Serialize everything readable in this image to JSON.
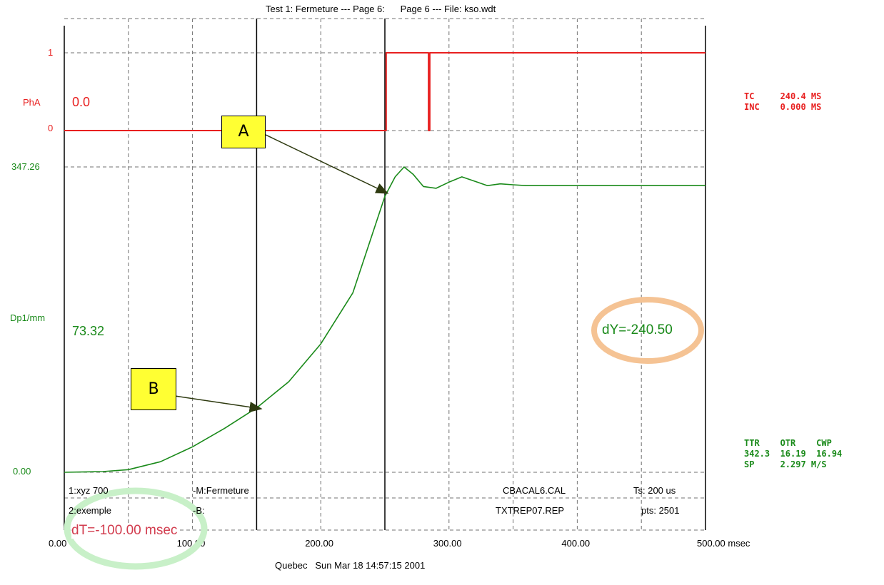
{
  "header": {
    "title": "Test 1: Fermeture --- Page 6:      Page 6 --- File: kso.wdt"
  },
  "left_labels": {
    "pha_one": "1",
    "pha_name": "PhA",
    "pha_zero": "0",
    "dp_max": "347.26",
    "dp_name": "Dp1/mm",
    "dp_zero": "0.00"
  },
  "readouts": {
    "pha_value": "0.0",
    "dp_value": "73.32",
    "dy": "dY=-240.50",
    "dt": "dT=-100.00 msec"
  },
  "right_panel": {
    "tc_line": "TC     240.4 MS",
    "inc_line": "INC    0.000 MS",
    "ttr_header": "TTR    OTR    CWP",
    "ttr_values": "342.3  16.19  16.94",
    "sp_line": "SP     2.297 M/S"
  },
  "info_box": {
    "row1_col1": "1:xyz 700",
    "row1_col2": "-M:Fermeture",
    "row1_col3": "CBACAL6.CAL",
    "row1_col4": "Ts: 200 us",
    "row2_col1": "2:exemple",
    "row2_col2": "-B:",
    "row2_col3": "TXTREP07.REP",
    "row2_col4": "pts: 2501"
  },
  "callouts": {
    "a": "A",
    "b": "B"
  },
  "footer": "Quebec   Sun Mar 18 14:57:15 2001",
  "colors": {
    "pha": "#e82020",
    "displacement": "#1a8a1a",
    "dy_circle": "#f5c394",
    "dt_circle": "#c8f0c8",
    "callout": "#ffff33"
  },
  "chart_data": {
    "type": "line",
    "x_ticks": [
      "0.00",
      "100.00",
      "200.00",
      "300.00",
      "400.00",
      "500.00 msec"
    ],
    "xlim": [
      0,
      500
    ],
    "xunit": "msec",
    "grid": true,
    "cursors": [
      150,
      250
    ],
    "series": [
      {
        "name": "PhA",
        "ylim": [
          0,
          1
        ],
        "x": [
          0,
          250,
          251,
          260,
          283,
          284,
          285,
          500
        ],
        "y": [
          0,
          0,
          1,
          1,
          1,
          0,
          1,
          1
        ]
      },
      {
        "name": "Dp1/mm",
        "ylim": [
          0,
          347.26
        ],
        "x": [
          0,
          30,
          50,
          75,
          100,
          125,
          150,
          175,
          200,
          225,
          250,
          258,
          265,
          272,
          280,
          290,
          300,
          310,
          320,
          330,
          340,
          350,
          360,
          400,
          450,
          500
        ],
        "y": [
          0,
          0.8,
          3,
          12,
          29,
          50,
          73.3,
          103,
          146,
          204,
          313.8,
          336,
          347.3,
          339,
          325,
          323,
          330,
          336,
          331,
          326,
          328,
          327,
          326,
          326,
          326,
          326
        ]
      }
    ]
  }
}
